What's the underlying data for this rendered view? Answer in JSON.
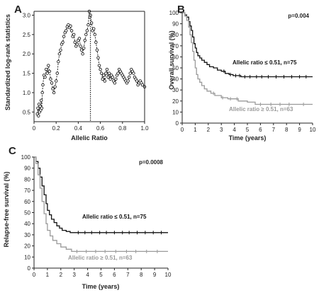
{
  "colors": {
    "black_series": "#111111",
    "gray_series": "#9a9a9a",
    "axis": "#222222"
  },
  "chart_data": [
    {
      "panel": "A",
      "type": "line",
      "xlabel": "Allelic Ratio",
      "ylabel": "Standardized log-rank statistics",
      "xlim": [
        0,
        1.0
      ],
      "ylim": [
        0.25,
        3.1
      ],
      "xticks": [
        "0",
        "0.2",
        "0.4",
        "0.6",
        "0.8",
        "1.0"
      ],
      "xtick_values": [
        0,
        0.2,
        0.4,
        0.6,
        0.8,
        1.0
      ],
      "yticks": [
        "0.5",
        "1.0",
        "1.5",
        "2.0",
        "2.5",
        "3.0"
      ],
      "ytick_values": [
        0.5,
        1.0,
        1.5,
        2.0,
        2.5,
        3.0
      ],
      "cutoff": 0.51,
      "series": [
        {
          "x": [
            0.03,
            0.035,
            0.04,
            0.045,
            0.05,
            0.055,
            0.06,
            0.065,
            0.07,
            0.075,
            0.08,
            0.09,
            0.1,
            0.11,
            0.12,
            0.13,
            0.14,
            0.15,
            0.16,
            0.17,
            0.18,
            0.19,
            0.2,
            0.21,
            0.22,
            0.23,
            0.24,
            0.25,
            0.26,
            0.27,
            0.28,
            0.29,
            0.3,
            0.31,
            0.32,
            0.33,
            0.34,
            0.35,
            0.36,
            0.37,
            0.38,
            0.39,
            0.4,
            0.41,
            0.42,
            0.43,
            0.44,
            0.45,
            0.46,
            0.47,
            0.48,
            0.49,
            0.5,
            0.505,
            0.51,
            0.52,
            0.53,
            0.54,
            0.55,
            0.56,
            0.57,
            0.58,
            0.59,
            0.6,
            0.61,
            0.62,
            0.63,
            0.64,
            0.65,
            0.66,
            0.67,
            0.68,
            0.69,
            0.7,
            0.71,
            0.72,
            0.73,
            0.74,
            0.75,
            0.76,
            0.77,
            0.78,
            0.79,
            0.8,
            0.81,
            0.82,
            0.83,
            0.84,
            0.85,
            0.86,
            0.87,
            0.88,
            0.89,
            0.9,
            0.91,
            0.92,
            0.93,
            0.94,
            0.95,
            0.96,
            0.97,
            0.98,
            1.0
          ],
          "y": [
            0.45,
            0.6,
            0.4,
            0.7,
            0.5,
            0.65,
            0.55,
            0.8,
            0.6,
            1.0,
            1.2,
            1.45,
            1.4,
            1.6,
            1.5,
            1.7,
            1.55,
            1.35,
            1.25,
            1.1,
            1.0,
            1.15,
            1.3,
            1.5,
            1.8,
            2.0,
            2.1,
            2.25,
            2.3,
            2.45,
            2.55,
            2.6,
            2.7,
            2.75,
            2.68,
            2.72,
            2.6,
            2.45,
            2.5,
            2.3,
            2.2,
            2.25,
            2.35,
            2.4,
            2.2,
            2.1,
            2.0,
            2.15,
            2.35,
            2.5,
            2.6,
            2.75,
            3.1,
            2.95,
            3.0,
            2.8,
            2.6,
            2.65,
            2.5,
            2.3,
            2.1,
            1.9,
            1.7,
            1.6,
            1.5,
            1.35,
            1.45,
            1.3,
            1.5,
            1.6,
            1.4,
            1.5,
            1.35,
            1.45,
            1.4,
            1.3,
            1.25,
            1.35,
            1.45,
            1.5,
            1.6,
            1.55,
            1.5,
            1.45,
            1.4,
            1.35,
            1.3,
            1.25,
            1.3,
            1.4,
            1.5,
            1.6,
            1.55,
            1.5,
            1.4,
            1.35,
            1.3,
            1.2,
            1.25,
            1.3,
            1.25,
            1.2,
            1.15
          ]
        }
      ]
    },
    {
      "panel": "B",
      "type": "line",
      "xlabel": "Time (years)",
      "ylabel": "Overall survival (%)",
      "xlim": [
        0,
        10
      ],
      "ylim": [
        0,
        100
      ],
      "xticks": [
        "0",
        "1",
        "2",
        "3",
        "4",
        "5",
        "6",
        "7",
        "8",
        "9",
        "10"
      ],
      "xtick_values": [
        0,
        1,
        2,
        3,
        4,
        5,
        6,
        7,
        8,
        9,
        10
      ],
      "yticks": [
        "0",
        "10",
        "20",
        "30",
        "40",
        "50",
        "60",
        "70",
        "80",
        "90",
        "100"
      ],
      "ytick_values": [
        0,
        10,
        20,
        30,
        40,
        50,
        60,
        70,
        80,
        90,
        100
      ],
      "pvalue": "p=0.004",
      "series": [
        {
          "name": "Allelic ratio ≤ 0.51, n=75",
          "color": "#111111",
          "x": [
            0,
            0.2,
            0.35,
            0.5,
            0.6,
            0.7,
            0.8,
            0.9,
            1.0,
            1.1,
            1.2,
            1.35,
            1.5,
            1.7,
            1.9,
            2.1,
            2.4,
            2.7,
            3.0,
            3.3,
            3.6,
            3.9,
            4.5,
            5.5,
            10
          ],
          "y": [
            100,
            98,
            96,
            92,
            88,
            84,
            78,
            72,
            68,
            64,
            61,
            59,
            57,
            55,
            53,
            51,
            50,
            48,
            47,
            45,
            44,
            43,
            42,
            42,
            42
          ],
          "censor_x": [
            3.2,
            3.7,
            4.1,
            4.4,
            4.8,
            5.2,
            5.7,
            6.1,
            6.6,
            7.2,
            7.8,
            8.4,
            9.0,
            9.5
          ]
        },
        {
          "name": "Allelic ratio ≥ 0.51, n=63",
          "color": "#9a9a9a",
          "x": [
            0,
            0.2,
            0.35,
            0.5,
            0.6,
            0.7,
            0.8,
            0.9,
            1.0,
            1.1,
            1.2,
            1.35,
            1.5,
            1.7,
            1.9,
            2.2,
            2.5,
            3.0,
            3.5,
            4.3,
            5.0,
            5.6,
            10
          ],
          "y": [
            100,
            97,
            93,
            87,
            80,
            73,
            65,
            57,
            50,
            44,
            40,
            37,
            34,
            31,
            29,
            27,
            25,
            23,
            22,
            20,
            19,
            17,
            17
          ],
          "censor_x": [
            2.4,
            3.1,
            3.7,
            4.2,
            6.0,
            6.8,
            7.5,
            8.2,
            9.3
          ]
        }
      ]
    },
    {
      "panel": "C",
      "type": "line",
      "xlabel": "Time (years)",
      "ylabel": "Relapse-free survival (%)",
      "xlim": [
        0,
        10
      ],
      "ylim": [
        0,
        100
      ],
      "xticks": [
        "0",
        "1",
        "2",
        "3",
        "4",
        "5",
        "6",
        "7",
        "8",
        "9",
        "10"
      ],
      "xtick_values": [
        0,
        1,
        2,
        3,
        4,
        5,
        6,
        7,
        8,
        9,
        10
      ],
      "yticks": [
        "0",
        "10",
        "20",
        "30",
        "40",
        "50",
        "60",
        "70",
        "80",
        "90",
        "100"
      ],
      "ytick_values": [
        0,
        10,
        20,
        30,
        40,
        50,
        60,
        70,
        80,
        90,
        100
      ],
      "pvalue": "p=0.0008",
      "series": [
        {
          "name": "Allelic ratio ≤ 0.51, n=75",
          "color": "#111111",
          "x": [
            0,
            0.15,
            0.3,
            0.45,
            0.6,
            0.75,
            0.9,
            1.0,
            1.15,
            1.3,
            1.5,
            1.7,
            1.9,
            2.1,
            2.4,
            2.7,
            3.0,
            10
          ],
          "y": [
            100,
            96,
            90,
            82,
            74,
            66,
            58,
            52,
            48,
            44,
            41,
            38,
            36,
            34,
            33,
            32,
            32,
            32
          ],
          "censor_x": [
            3.3,
            3.8,
            4.3,
            4.9,
            5.4,
            6.0,
            6.6,
            7.1,
            7.7,
            8.3,
            8.9,
            9.5
          ]
        },
        {
          "name": "Allelic ratio ≥ 0.51, n=63",
          "color": "#9a9a9a",
          "x": [
            0,
            0.15,
            0.3,
            0.45,
            0.6,
            0.75,
            0.9,
            1.0,
            1.2,
            1.4,
            1.7,
            2.0,
            2.4,
            2.8,
            3.0,
            10
          ],
          "y": [
            100,
            94,
            84,
            72,
            60,
            49,
            40,
            34,
            29,
            25,
            22,
            19,
            17,
            15,
            15,
            15
          ],
          "censor_x": [
            3.2,
            3.9,
            4.6,
            5.3,
            6.1,
            6.9,
            7.6,
            8.4,
            9.2
          ]
        }
      ]
    }
  ]
}
